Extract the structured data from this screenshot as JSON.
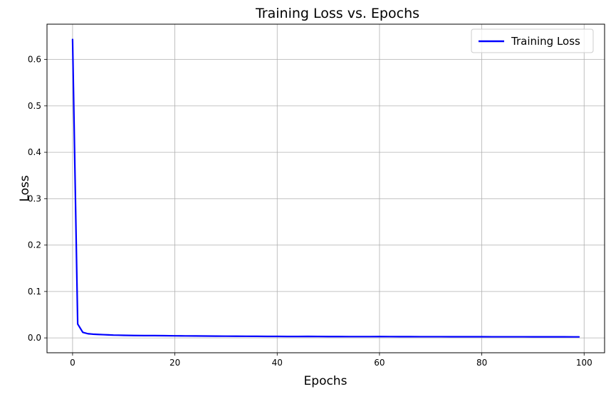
{
  "chart_data": {
    "type": "line",
    "title": "Training Loss vs. Epochs",
    "xlabel": "Epochs",
    "ylabel": "Loss",
    "xlim": [
      -5,
      104
    ],
    "ylim": [
      -0.032,
      0.676
    ],
    "x_ticks": [
      0,
      20,
      40,
      60,
      80,
      100
    ],
    "y_ticks": [
      0.0,
      0.1,
      0.2,
      0.3,
      0.4,
      0.5,
      0.6
    ],
    "grid": true,
    "legend_position": "top-right",
    "series": [
      {
        "name": "Training Loss",
        "color": "#0000ff",
        "x": [
          0,
          1,
          2,
          3,
          4,
          5,
          6,
          7,
          8,
          9,
          10,
          12,
          14,
          16,
          18,
          20,
          22,
          24,
          26,
          28,
          30,
          32,
          34,
          36,
          38,
          40,
          42,
          44,
          46,
          48,
          50,
          52,
          54,
          56,
          58,
          60,
          62,
          64,
          66,
          68,
          70,
          72,
          74,
          76,
          78,
          80,
          82,
          84,
          86,
          88,
          90,
          92,
          94,
          96,
          98,
          99
        ],
        "y": [
          0.643,
          0.03,
          0.012,
          0.009,
          0.008,
          0.0075,
          0.007,
          0.0065,
          0.006,
          0.0058,
          0.0055,
          0.0052,
          0.005,
          0.005,
          0.0048,
          0.0045,
          0.0043,
          0.0042,
          0.004,
          0.0038,
          0.0037,
          0.0036,
          0.0035,
          0.0034,
          0.0033,
          0.0032,
          0.0031,
          0.0031,
          0.0033,
          0.003,
          0.0029,
          0.0029,
          0.0028,
          0.0028,
          0.0028,
          0.0029,
          0.0028,
          0.0027,
          0.0027,
          0.0026,
          0.0026,
          0.0026,
          0.0025,
          0.0025,
          0.0025,
          0.0025,
          0.0024,
          0.0024,
          0.0024,
          0.0024,
          0.0023,
          0.0023,
          0.0023,
          0.0023,
          0.0022,
          0.0022
        ]
      }
    ]
  }
}
